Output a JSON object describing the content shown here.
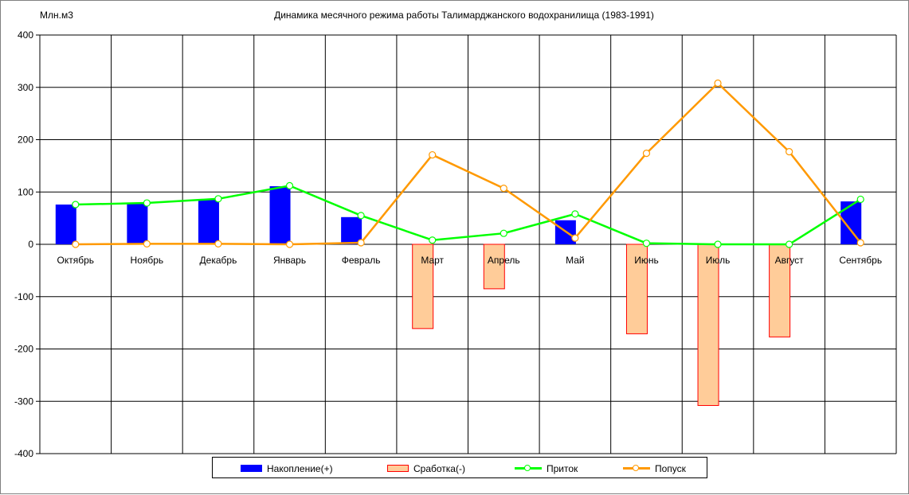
{
  "chart_data": {
    "type": "bar",
    "title": "Динамика месячного режима работы Талимарджанского водохранилища (1983-1991)",
    "ylabel": "Млн.м3",
    "ylim": [
      -400,
      400
    ],
    "yticks": [
      400,
      300,
      200,
      100,
      0,
      -100,
      -200,
      -300,
      -400
    ],
    "grid": true,
    "legend_position": "bottom",
    "categories": [
      "Октябрь",
      "Ноябрь",
      "Декабрь",
      "Январь",
      "Февраль",
      "Март",
      "Апрель",
      "Май",
      "Июнь",
      "Июль",
      "Август",
      "Сентябрь"
    ],
    "series": [
      {
        "name": "Накопление(+)",
        "kind": "bar",
        "color": "#0000ff",
        "values": [
          76,
          79,
          86,
          111,
          52,
          0,
          0,
          46,
          0,
          0,
          0,
          82
        ]
      },
      {
        "name": "Сработка(-)",
        "kind": "bar",
        "color": "#ffcc99",
        "border": "#ff0000",
        "values": [
          0,
          0,
          0,
          0,
          0,
          -161,
          -85,
          0,
          -171,
          -308,
          -177,
          0
        ]
      },
      {
        "name": "Приток",
        "kind": "line",
        "color": "#00ff00",
        "values": [
          76,
          79,
          87,
          112,
          55,
          8,
          21,
          58,
          2,
          0,
          0,
          86
        ]
      },
      {
        "name": "Попуск",
        "kind": "line",
        "color": "#ff9900",
        "values": [
          0,
          1,
          1,
          0,
          3,
          171,
          107,
          12,
          174,
          308,
          177,
          3
        ]
      }
    ]
  }
}
